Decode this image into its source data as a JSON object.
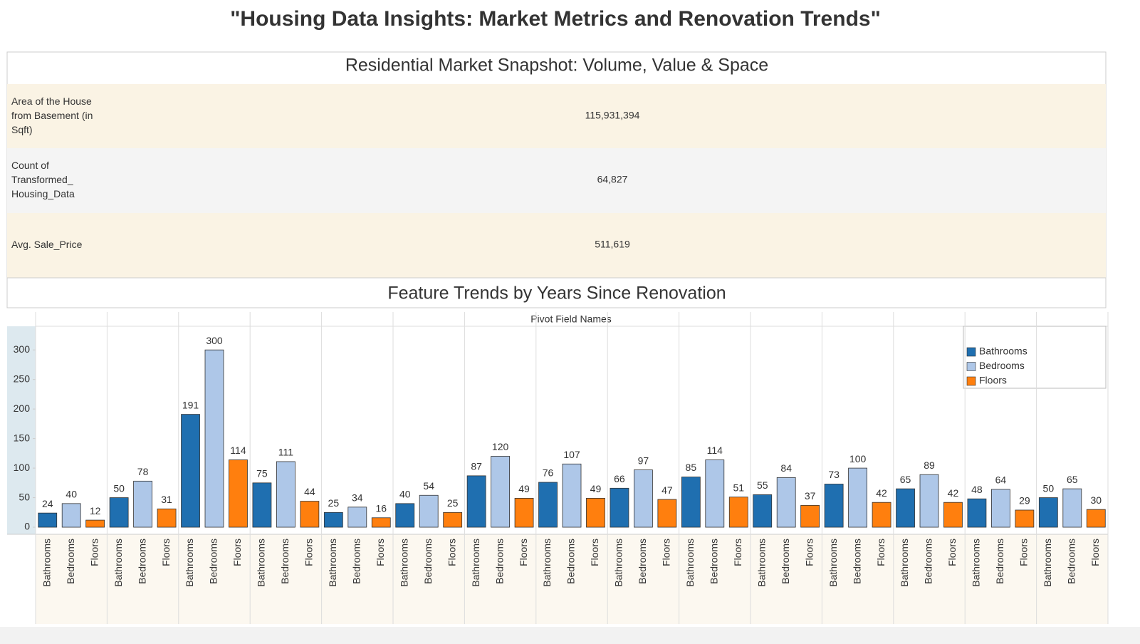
{
  "title": "\"Housing Data Insights: Market Metrics and Renovation Trends\"",
  "table": {
    "title": "Residential Market Snapshot: Volume, Value & Space",
    "rows": [
      [
        "Area of the House from Basement (in Sqft)",
        "115,931,394"
      ],
      [
        "Count of Transformed_ Housing_Data",
        "64,827"
      ],
      [
        "Avg. Sale_Price",
        "511,619"
      ]
    ]
  },
  "chart_data": {
    "type": "bar",
    "title": "Feature Trends by Years Since Renovation",
    "column_header": "Pivot Field Names",
    "categories": [
      null,
      null,
      null,
      null,
      null,
      null,
      null,
      null,
      null,
      null,
      null,
      null,
      null,
      null,
      null
    ],
    "series": [
      {
        "name": "Bathrooms",
        "color": "#1f6fb0",
        "values": [
          24,
          50,
          191,
          75,
          25,
          40,
          87,
          76,
          66,
          85,
          55,
          73,
          65,
          48,
          50
        ]
      },
      {
        "name": "Bedrooms",
        "color": "#aec7e8",
        "values": [
          40,
          78,
          300,
          111,
          34,
          54,
          120,
          107,
          97,
          114,
          84,
          100,
          89,
          64,
          65
        ]
      },
      {
        "name": "Floors",
        "color": "#ff7f0e",
        "values": [
          12,
          31,
          114,
          44,
          16,
          25,
          49,
          49,
          47,
          51,
          37,
          42,
          42,
          29,
          30
        ]
      }
    ],
    "ylim": [
      -12,
      340
    ],
    "yticks": [
      0,
      50,
      100,
      150,
      200,
      250,
      300
    ],
    "grid": false,
    "legend": "top-right"
  }
}
